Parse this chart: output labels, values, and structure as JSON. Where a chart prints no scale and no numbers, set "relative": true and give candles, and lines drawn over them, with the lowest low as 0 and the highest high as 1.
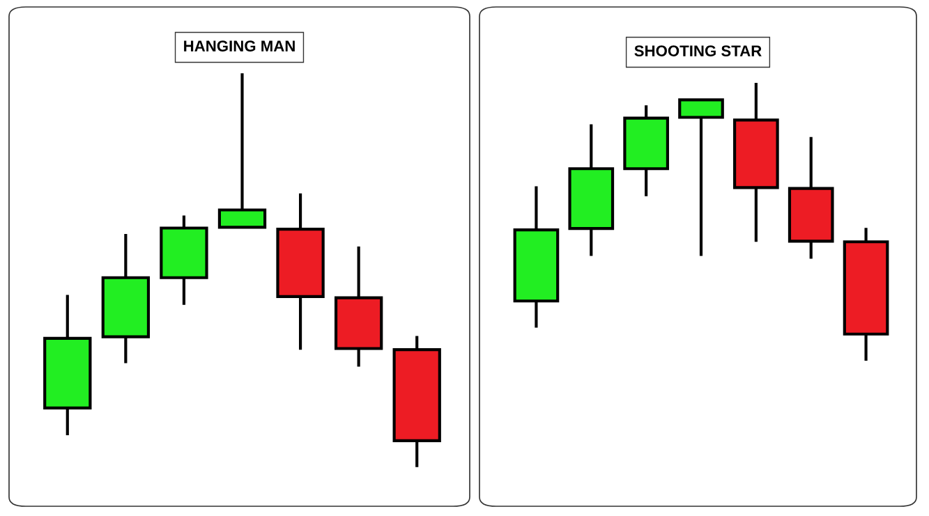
{
  "chart_data": [
    {
      "type": "candlestick",
      "title": "HANGING MAN",
      "relative": true,
      "categories": [
        null,
        null,
        null,
        null,
        null,
        null,
        null
      ],
      "ohlc": [
        [
          0.15,
          0.437,
          0.081,
          0.327
        ],
        [
          0.331,
          0.592,
          0.264,
          0.481
        ],
        [
          0.481,
          0.639,
          0.412,
          0.607
        ],
        [
          0.609,
          1.0,
          0.609,
          0.653
        ],
        [
          0.604,
          0.695,
          0.298,
          0.433
        ],
        [
          0.43,
          0.56,
          0.255,
          0.301
        ],
        [
          0.298,
          0.333,
          0.0,
          0.067
        ]
      ],
      "colors": [
        "#22ee22",
        "#22ee22",
        "#22ee22",
        "#22ee22",
        "#ed1c24",
        "#ed1c24",
        "#ed1c24"
      ]
    },
    {
      "type": "candlestick",
      "title": "SHOOTING STAR",
      "relative": true,
      "categories": [
        null,
        null,
        null,
        null,
        null,
        null,
        null
      ],
      "ohlc": [
        [
          0.215,
          0.628,
          0.119,
          0.471
        ],
        [
          0.476,
          0.851,
          0.377,
          0.691
        ],
        [
          0.691,
          0.919,
          0.592,
          0.873
        ],
        [
          0.876,
          0.939,
          0.377,
          0.939
        ],
        [
          0.866,
          1.0,
          0.428,
          0.623
        ],
        [
          0.62,
          0.805,
          0.367,
          0.43
        ],
        [
          0.428,
          0.478,
          0.0,
          0.096
        ]
      ],
      "colors": [
        "#22ee22",
        "#22ee22",
        "#22ee22",
        "#22ee22",
        "#ed1c24",
        "#ed1c24",
        "#ed1c24"
      ]
    }
  ]
}
